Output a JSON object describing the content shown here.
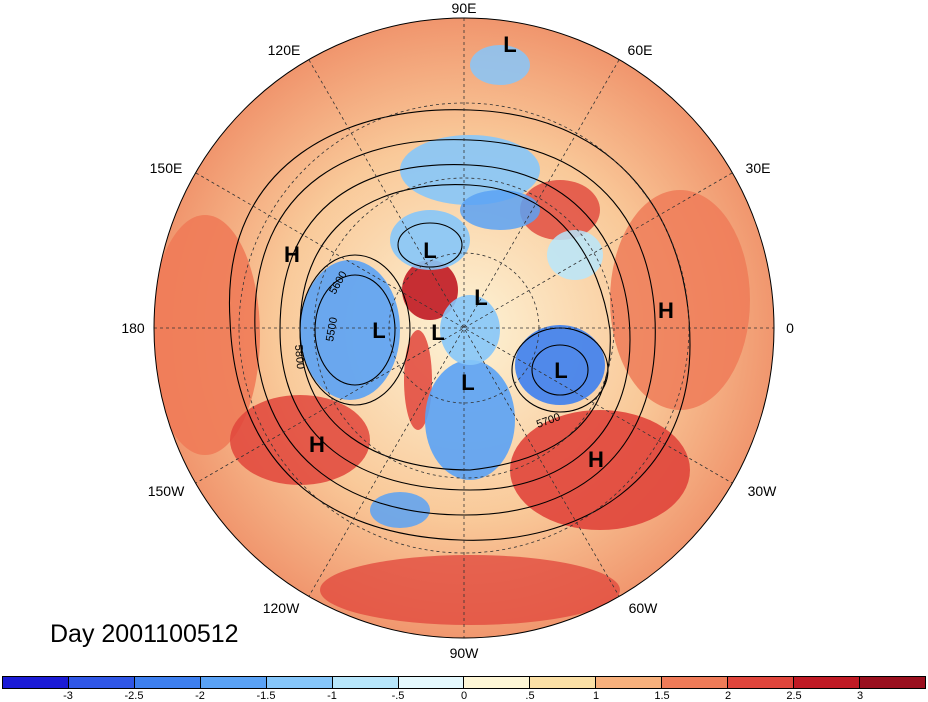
{
  "title": "Day 2001100512",
  "longitude_labels": {
    "lon_90e": "90E",
    "lon_120e": "120E",
    "lon_60e": "60E",
    "lon_150e": "150E",
    "lon_30e": "30E",
    "lon_180": "180",
    "lon_0": "0",
    "lon_150w": "150W",
    "lon_30w": "30W",
    "lon_120w": "120W",
    "lon_60w": "60W",
    "lon_90w": "90W"
  },
  "pressure_centers": [
    "L",
    "L",
    "L",
    "L",
    "L",
    "L",
    "L",
    "H",
    "H",
    "H",
    "H"
  ],
  "contour_labels": [
    "5600",
    "5500",
    "5800",
    "5700"
  ],
  "colorbar": {
    "ticks": [
      "-3",
      "-2.5",
      "-2",
      "-1.5",
      "-1",
      "-.5",
      "0",
      ".5",
      "1",
      "1.5",
      "2",
      "2.5",
      "3"
    ],
    "colors": [
      "#1b1bd6",
      "#2f56e6",
      "#3d7fef",
      "#5aa2f5",
      "#86c6fa",
      "#b7e6fb",
      "#e4f8fd",
      "#fdf6d6",
      "#fbe0a6",
      "#f7b07c",
      "#ef7b58",
      "#e0453b",
      "#c01a24",
      "#9a0f1e"
    ]
  }
}
